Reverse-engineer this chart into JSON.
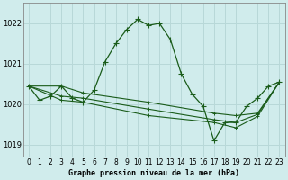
{
  "title": "Graphe pression niveau de la mer (hPa)",
  "background_color": "#d0ecec",
  "grid_color": "#b8d8d8",
  "line_color": "#1a5c1a",
  "xlim": [
    -0.5,
    23.5
  ],
  "ylim": [
    1018.7,
    1022.5
  ],
  "yticks": [
    1019,
    1020,
    1021,
    1022
  ],
  "xtick_labels": [
    "0",
    "1",
    "2",
    "3",
    "4",
    "5",
    "6",
    "7",
    "8",
    "9",
    "10",
    "11",
    "12",
    "13",
    "14",
    "15",
    "16",
    "17",
    "18",
    "19",
    "20",
    "21",
    "22",
    "23"
  ],
  "main_line": {
    "x": [
      0,
      1,
      2,
      3,
      4,
      5,
      6,
      7,
      8,
      9,
      10,
      11,
      12,
      13,
      14,
      15,
      16,
      17,
      18,
      19,
      20,
      21,
      22,
      23
    ],
    "y": [
      1020.45,
      1020.1,
      1020.2,
      1020.45,
      1020.15,
      1020.05,
      1020.35,
      1021.05,
      1021.5,
      1021.85,
      1022.1,
      1021.95,
      1022.0,
      1021.6,
      1020.75,
      1020.25,
      1019.95,
      1019.1,
      1019.55,
      1019.55,
      1019.95,
      1020.15,
      1020.45,
      1020.55
    ]
  },
  "trend_lines": [
    {
      "x": [
        0,
        3,
        5,
        11,
        17,
        19,
        21,
        23
      ],
      "y": [
        1020.45,
        1020.45,
        1020.28,
        1020.05,
        1019.78,
        1019.72,
        1019.78,
        1020.55
      ]
    },
    {
      "x": [
        0,
        3,
        5,
        11,
        17,
        19,
        21,
        23
      ],
      "y": [
        1020.45,
        1020.2,
        1020.15,
        1019.88,
        1019.62,
        1019.55,
        1019.75,
        1020.55
      ]
    },
    {
      "x": [
        0,
        3,
        5,
        11,
        17,
        19,
        21,
        23
      ],
      "y": [
        1020.45,
        1020.1,
        1020.05,
        1019.72,
        1019.55,
        1019.42,
        1019.7,
        1020.55
      ]
    }
  ]
}
